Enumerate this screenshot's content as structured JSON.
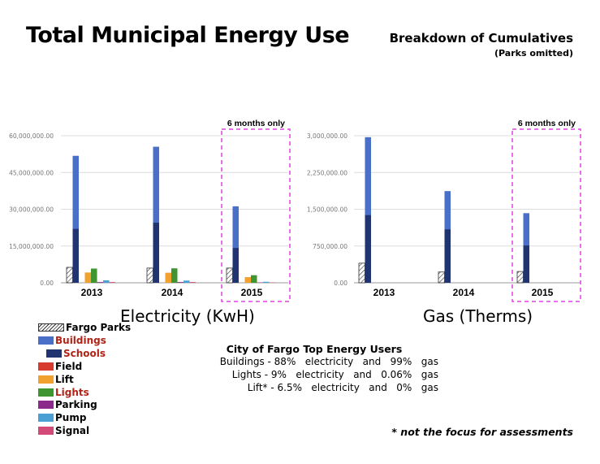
{
  "header": {
    "title": "Total Municipal Energy Use",
    "subtitle": "Breakdown of Cumulatives",
    "subtitle_note": "(Parks omitted)"
  },
  "colors": {
    "fargo_parks": "#ffffff",
    "buildings": "#4a6fc8",
    "schools": "#1f3470",
    "field": "#d73b2f",
    "lift": "#f1a12d",
    "lights": "#3f9630",
    "parking": "#8c2a8c",
    "pump": "#4aa0d5",
    "signal": "#d34a78",
    "highlight_box": "#e040e0",
    "grid": "#dcdcdc",
    "legend_red_text": "#b02418"
  },
  "chart_data": [
    {
      "type": "bar",
      "title": "Electricity (KwH)",
      "categories": [
        "2013",
        "2014",
        "2015"
      ],
      "ylim": [
        0,
        60000000
      ],
      "yticks": [
        "0.00",
        "15,000,000.00",
        "30,000,000.00",
        "45,000,000.00",
        "60,000,000.00"
      ],
      "grid": true,
      "annotation": "6 months only",
      "annotation_category": "2015",
      "series": [
        {
          "name": "Fargo Parks",
          "values": [
            6300000,
            6000000,
            6000000
          ]
        },
        {
          "name": "Buildings",
          "values": [
            51800000,
            55500000,
            31200000
          ],
          "stack_base": "Schools"
        },
        {
          "name": "Schools",
          "values": [
            22000000,
            24500000,
            14200000
          ]
        },
        {
          "name": "Field",
          "values": [
            0,
            0,
            0
          ]
        },
        {
          "name": "Lift",
          "values": [
            4200000,
            4100000,
            2300000
          ]
        },
        {
          "name": "Lights",
          "values": [
            5800000,
            5900000,
            3100000
          ]
        },
        {
          "name": "Parking",
          "values": [
            300000,
            300000,
            150000
          ]
        },
        {
          "name": "Pump",
          "values": [
            1000000,
            900000,
            400000
          ]
        },
        {
          "name": "Signal",
          "values": [
            300000,
            300000,
            150000
          ]
        }
      ]
    },
    {
      "type": "bar",
      "title": "Gas (Therms)",
      "categories": [
        "2013",
        "2014",
        "2015"
      ],
      "ylim": [
        0,
        3000000
      ],
      "yticks": [
        "0.00",
        "750,000.00",
        "1,500,000.00",
        "2,250,000.00",
        "3,000,000.00"
      ],
      "grid": true,
      "annotation": "6 months only",
      "annotation_category": "2015",
      "series": [
        {
          "name": "Fargo Parks",
          "values": [
            400000,
            220000,
            230000
          ]
        },
        {
          "name": "Buildings",
          "values": [
            2970000,
            1870000,
            1420000
          ],
          "stack_base": "Schools"
        },
        {
          "name": "Schools",
          "values": [
            1380000,
            1090000,
            760000
          ]
        },
        {
          "name": "Field",
          "values": [
            0,
            0,
            0
          ]
        },
        {
          "name": "Lift",
          "values": [
            0,
            0,
            0
          ]
        },
        {
          "name": "Lights",
          "values": [
            0,
            0,
            0
          ]
        },
        {
          "name": "Parking",
          "values": [
            0,
            0,
            0
          ]
        },
        {
          "name": "Pump",
          "values": [
            0,
            0,
            0
          ]
        },
        {
          "name": "Signal",
          "values": [
            0,
            0,
            0
          ]
        }
      ]
    }
  ],
  "legend": [
    {
      "label": "Fargo Parks",
      "key": "fargo_parks",
      "indent": false,
      "red": false
    },
    {
      "label": "Buildings",
      "key": "buildings",
      "indent": false,
      "red": true
    },
    {
      "label": "Schools",
      "key": "schools",
      "indent": true,
      "red": true
    },
    {
      "label": "Field",
      "key": "field",
      "indent": false,
      "red": false
    },
    {
      "label": "Lift",
      "key": "lift",
      "indent": false,
      "red": false
    },
    {
      "label": "Lights",
      "key": "lights",
      "indent": false,
      "red": true
    },
    {
      "label": "Parking",
      "key": "parking",
      "indent": false,
      "red": false
    },
    {
      "label": "Pump",
      "key": "pump",
      "indent": false,
      "red": false
    },
    {
      "label": "Signal",
      "key": "signal",
      "indent": false,
      "red": false
    }
  ],
  "summary": {
    "title": "City of Fargo Top Energy Users",
    "lines": [
      "Buildings - 88%   electricity   and   99%   gas",
      "Lights - 9%   electricity   and   0.06%   gas",
      "Lift* - 6.5%   electricity   and   0%   gas"
    ]
  },
  "footnote": "* not the focus for assessments"
}
